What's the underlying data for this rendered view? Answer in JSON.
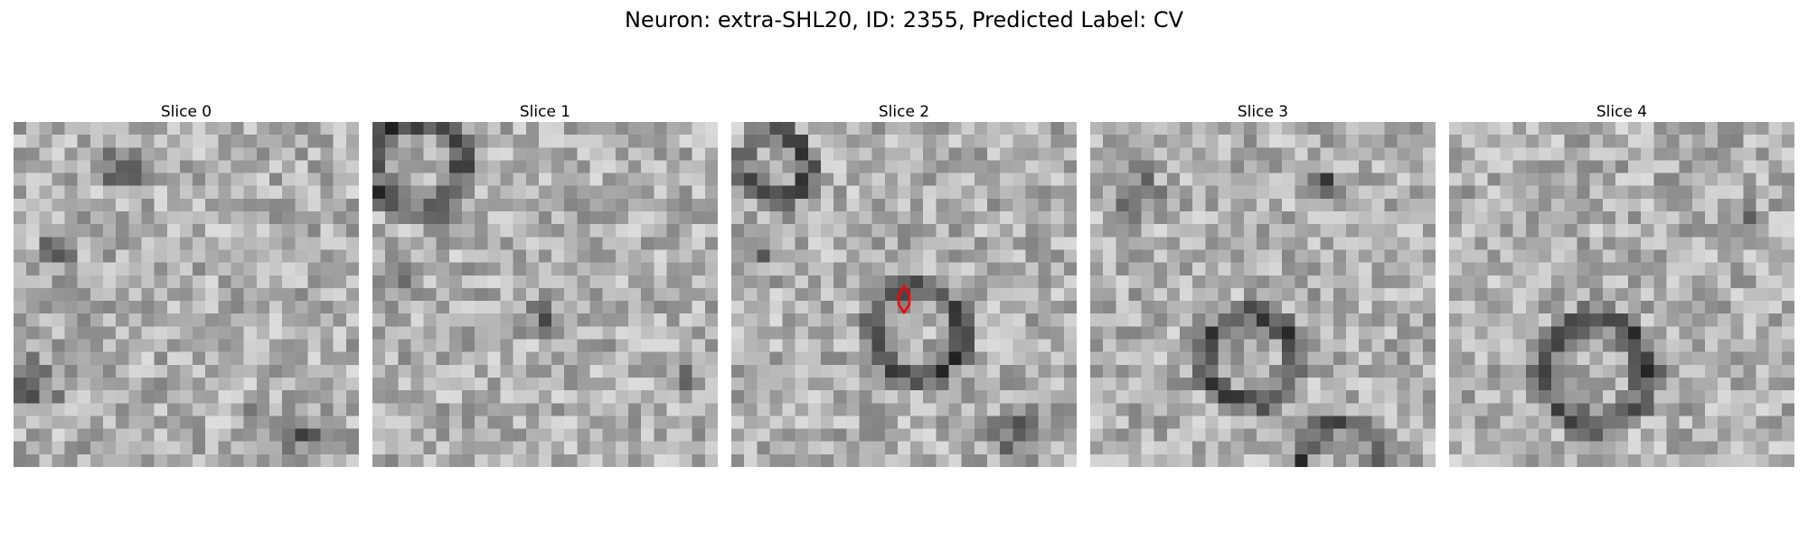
{
  "figure": {
    "title": "Neuron: extra-SHL20, ID: 2355, Predicted Label: CV"
  },
  "panels": [
    {
      "title": "Slice 0"
    },
    {
      "title": "Slice 1"
    },
    {
      "title": "Slice 2"
    },
    {
      "title": "Slice 3"
    },
    {
      "title": "Slice 4"
    }
  ],
  "colors": {
    "marker": "#ff0000",
    "colormap": "gray"
  }
}
